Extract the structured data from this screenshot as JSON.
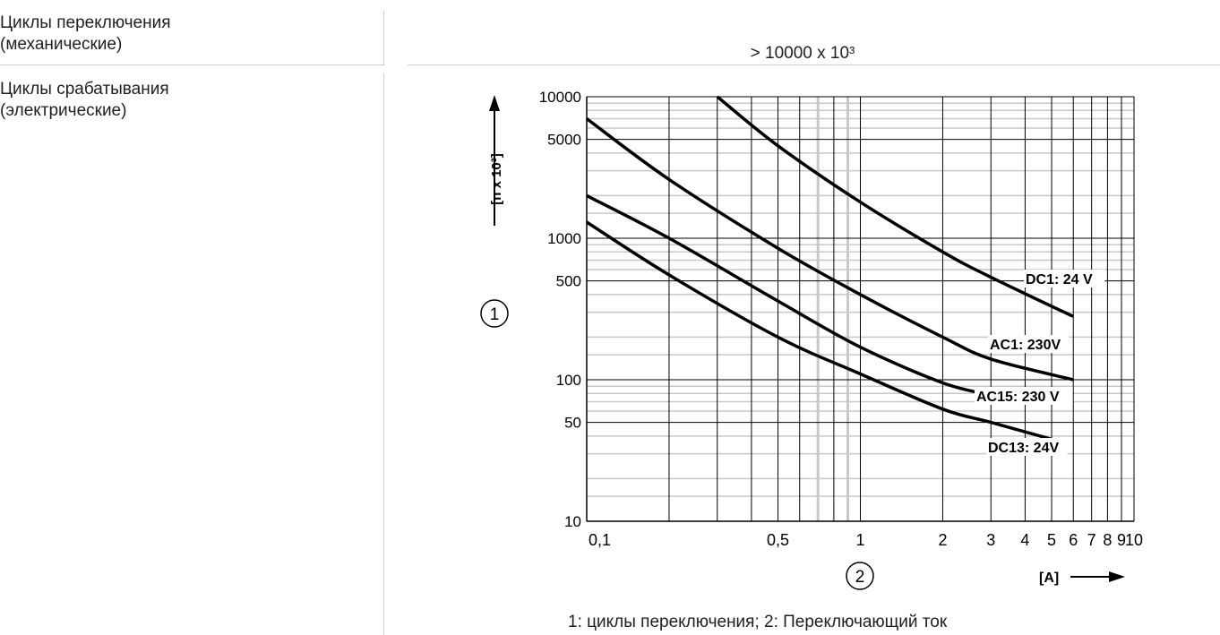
{
  "rows": [
    {
      "label_line1": "Циклы переключения",
      "label_line2": "(механические)",
      "value": "> 10000 x 10³"
    },
    {
      "label_line1": "Циклы срабатывания",
      "label_line2": "(электрические)"
    }
  ],
  "caption": "1: циклы переключения; 2: Переключающий ток",
  "chart_data": {
    "type": "line",
    "log_x": true,
    "log_y": true,
    "xlim": [
      0.1,
      10
    ],
    "ylim": [
      10,
      10000
    ],
    "ylabel": "[n x 10³]",
    "xlabel": "[A]",
    "y_axis_marker": "1",
    "x_axis_marker": "2",
    "x_tick_labels": [
      {
        "v": 0.1,
        "t": "0,1"
      },
      {
        "v": 0.5,
        "t": "0,5"
      },
      {
        "v": 1,
        "t": "1"
      },
      {
        "v": 2,
        "t": "2"
      },
      {
        "v": 3,
        "t": "3"
      },
      {
        "v": 4,
        "t": "4"
      },
      {
        "v": 5,
        "t": "5"
      },
      {
        "v": 6,
        "t": "6"
      },
      {
        "v": 7,
        "t": "7"
      },
      {
        "v": 8,
        "t": "8"
      },
      {
        "v": 9,
        "t": "9"
      },
      {
        "v": 10,
        "t": "10"
      }
    ],
    "y_tick_labels": [
      {
        "v": 10000,
        "t": "10000"
      },
      {
        "v": 5000,
        "t": "5000"
      },
      {
        "v": 1000,
        "t": "1000"
      },
      {
        "v": 500,
        "t": "500"
      },
      {
        "v": 100,
        "t": "100"
      },
      {
        "v": 50,
        "t": "50"
      },
      {
        "v": 10,
        "t": "10"
      }
    ],
    "series": [
      {
        "name": "DC1: 24 V",
        "x": [
          0.3,
          0.5,
          1,
          2,
          3,
          6
        ],
        "y": [
          10000,
          4500,
          1800,
          800,
          530,
          280
        ]
      },
      {
        "name": "AC1: 230V",
        "x": [
          0.1,
          0.2,
          0.5,
          1,
          2,
          3,
          6
        ],
        "y": [
          7000,
          2600,
          850,
          400,
          200,
          140,
          100
        ]
      },
      {
        "name": "AC15: 230 V",
        "x": [
          0.1,
          0.2,
          0.5,
          1,
          2,
          3
        ],
        "y": [
          2000,
          1000,
          360,
          170,
          95,
          78
        ]
      },
      {
        "name": "DC13: 24V",
        "x": [
          0.1,
          0.2,
          0.5,
          1,
          2,
          3,
          5
        ],
        "y": [
          1300,
          550,
          200,
          110,
          62,
          50,
          38
        ]
      }
    ]
  }
}
